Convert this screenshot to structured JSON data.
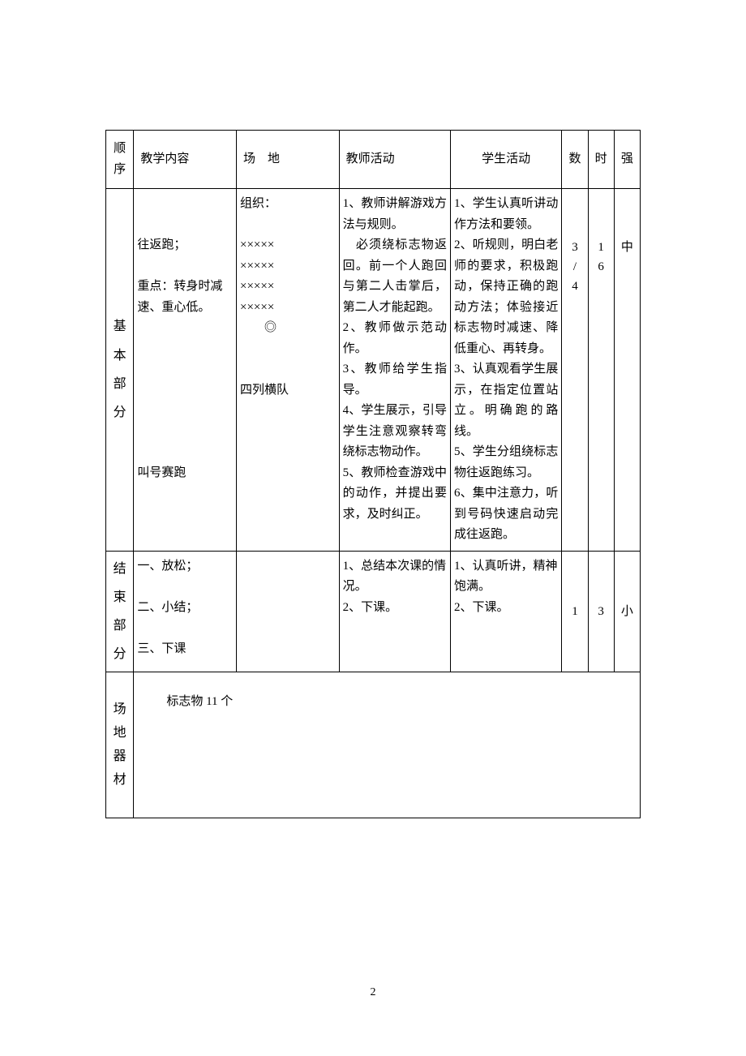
{
  "header": {
    "c1": "顺序",
    "c2": "教学内容",
    "c3": "场　地",
    "c4": "教师活动",
    "c5": "学生活动",
    "c6": "数",
    "c7": "时",
    "c8": "强"
  },
  "basic": {
    "label": "基本部分",
    "content": "\n\n往返跑；\n\n重点：转身时减速、重心低。\n\n\n\n\n\n\n\n叫号赛跑",
    "venue": "组织：\n\n×××××\n×××××\n×××××\n×××××\n　　◎\n\n\n四列横队",
    "teacher": "1、教师讲解游戏方法与规则。\n　必须绕标志物返回。前一个人跑回与第二人击掌后，第二人才能起跑。\n2、教师做示范动作。\n3、教师给学生指导。\n4、学生展示，引导学生注意观察转弯绕标志物动作。\n5、教师检查游戏中的动作，并提出要求，及时纠正。",
    "student": "1、学生认真听讲动作方法和要领。\n2、听规则，明白老师的要求，积极跑动，保持正确的跑动方法；体验接近标志物时减速、降低重心、再转身。\n3、认真观看学生展示，在指定位置站立。明确跑的路线。\n5、学生分组绕标志物往返跑练习。\n6、集中注意力，听到号码快速启动完成往返跑。",
    "count": "3/4",
    "time": "16",
    "intensity": "中"
  },
  "end": {
    "label": "结束部分",
    "content": "一、放松；\n\n二、小结；\n\n三、下课",
    "teacher": "1、总结本次课的情况。\n2、下课。",
    "student": "1、认真听讲，精神饱满。\n2、下课。",
    "count": "1",
    "time": "3",
    "intensity": "小"
  },
  "equipment": {
    "label": "场地器材",
    "text": "标志物 11 个"
  },
  "page_number": "2"
}
